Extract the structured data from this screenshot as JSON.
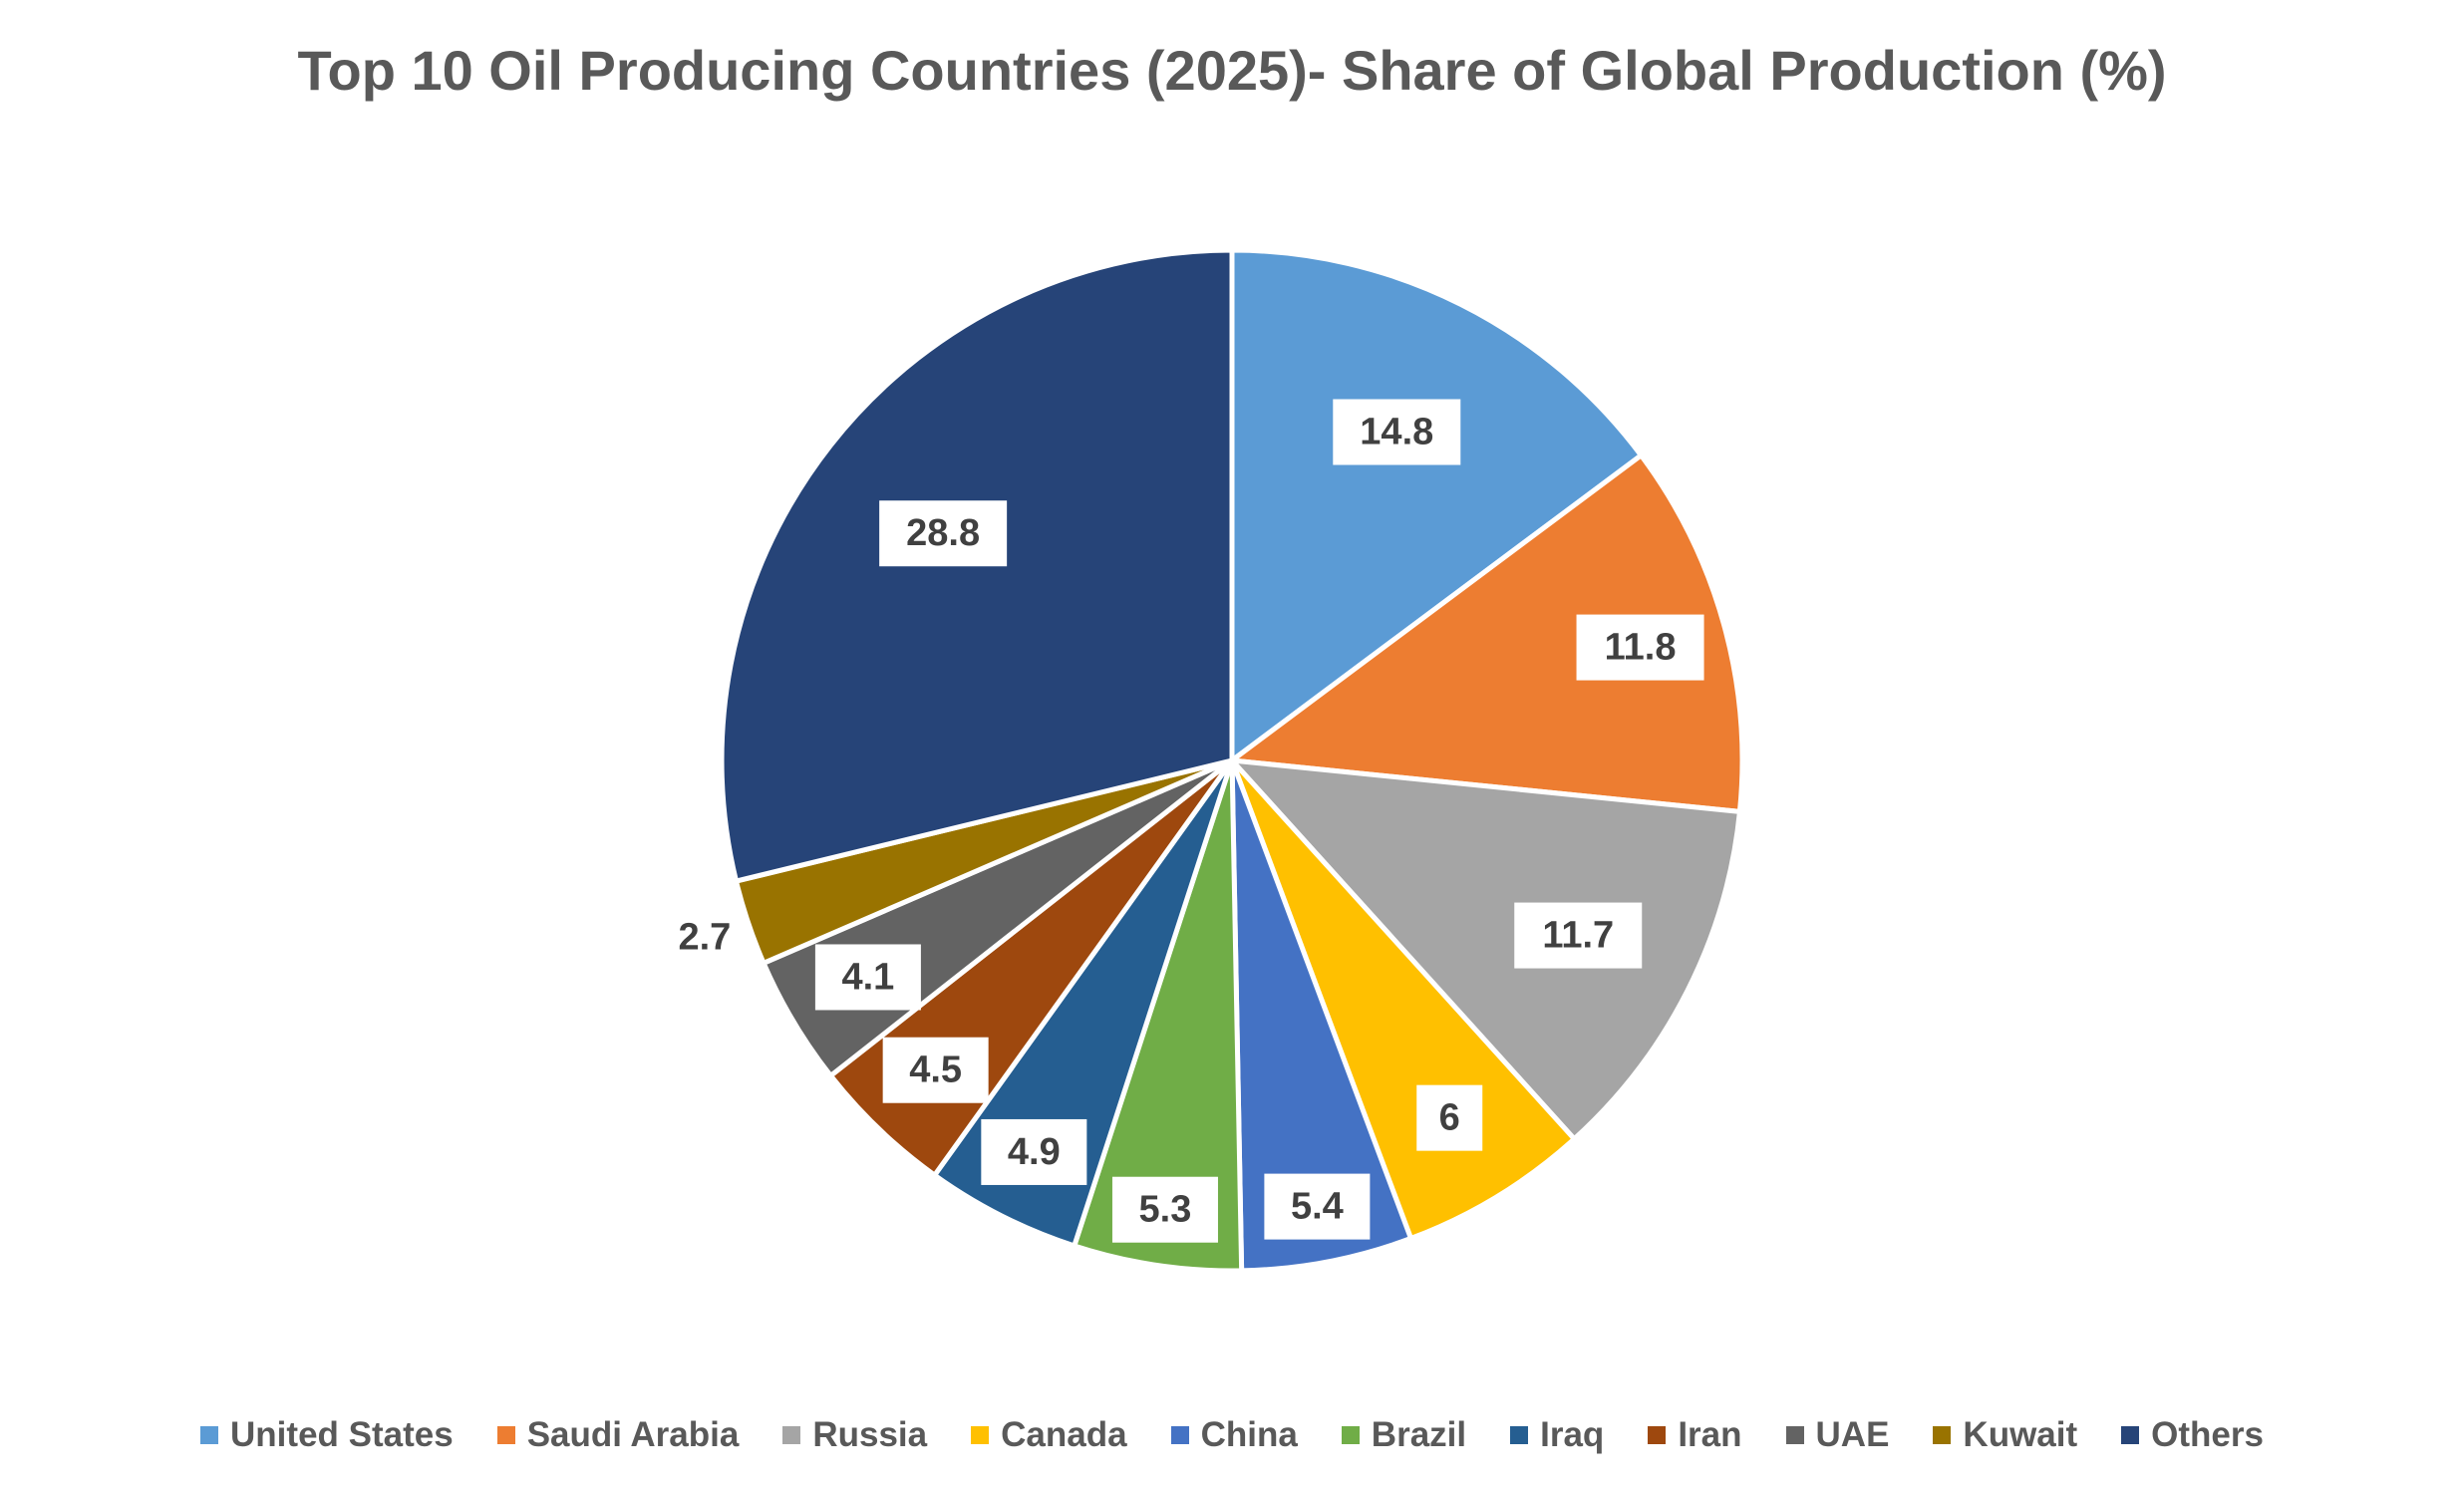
{
  "chart_data": {
    "type": "pie",
    "title": "Top 10 Oil Producing Countries (2025)- Share of Global Production (%)",
    "start_angle_deg": 0,
    "direction": "clockwise",
    "legend_position": "bottom",
    "slices": [
      {
        "name": "United States",
        "value": 14.8,
        "label": "14.8",
        "color": "#5B9BD5"
      },
      {
        "name": "Saudi Arabia",
        "value": 11.8,
        "label": "11.8",
        "color": "#ED7D31"
      },
      {
        "name": "Russia",
        "value": 11.7,
        "label": "11.7",
        "color": "#A5A5A5"
      },
      {
        "name": "Canada",
        "value": 6,
        "label": "6",
        "color": "#FFC000"
      },
      {
        "name": "China",
        "value": 5.4,
        "label": "5.4",
        "color": "#4472C4"
      },
      {
        "name": "Brazil",
        "value": 5.3,
        "label": "5.3",
        "color": "#70AD47"
      },
      {
        "name": "Iraq",
        "value": 4.9,
        "label": "4.9",
        "color": "#255E91"
      },
      {
        "name": "Iran",
        "value": 4.5,
        "label": "4.5",
        "color": "#9E480E"
      },
      {
        "name": "UAE",
        "value": 4.1,
        "label": "4.1",
        "color": "#636363"
      },
      {
        "name": "Kuwait",
        "value": 2.7,
        "label": "2.7",
        "color": "#997300"
      },
      {
        "name": "Others",
        "value": 28.8,
        "label": "28.8",
        "color": "#264478"
      }
    ]
  }
}
